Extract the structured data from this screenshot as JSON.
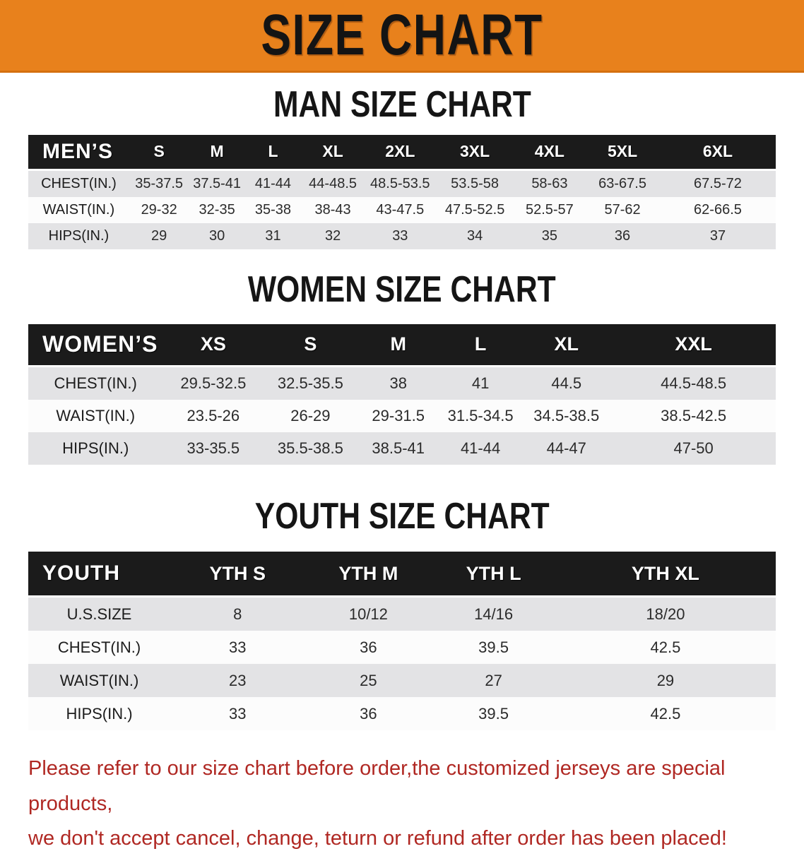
{
  "banner": {
    "title": "SIZE CHART"
  },
  "colors": {
    "banner_bg": "#E8811C",
    "banner_edge": "#D4700F",
    "header_bg": "#1B1B1B",
    "header_text": "#FFFFFF",
    "row_gray": "#E3E3E5",
    "row_white": "#FCFCFC",
    "footer_red": "#B02823"
  },
  "sections": [
    {
      "id": "men",
      "heading": "MAN SIZE CHART",
      "table": {
        "header": [
          "MEN’S",
          "S",
          "M",
          "L",
          "XL",
          "2XL",
          "3XL",
          "4XL",
          "5XL",
          "6XL"
        ],
        "rows": [
          [
            "CHEST(IN.)",
            "35-37.5",
            "37.5-41",
            "41-44",
            "44-48.5",
            "48.5-53.5",
            "53.5-58",
            "58-63",
            "63-67.5",
            "67.5-72"
          ],
          [
            "WAIST(IN.)",
            "29-32",
            "32-35",
            "35-38",
            "38-43",
            "43-47.5",
            "47.5-52.5",
            "52.5-57",
            "57-62",
            "62-66.5"
          ],
          [
            "HIPS(IN.)",
            "29",
            "30",
            "31",
            "32",
            "33",
            "34",
            "35",
            "36",
            "37"
          ]
        ]
      }
    },
    {
      "id": "women",
      "heading": "WOMEN SIZE CHART",
      "table": {
        "header": [
          "WOMEN’S",
          "XS",
          "S",
          "M",
          "L",
          "XL",
          "XXL"
        ],
        "rows": [
          [
            "CHEST(IN.)",
            "29.5-32.5",
            "32.5-35.5",
            "38",
            "41",
            "44.5",
            "44.5-48.5"
          ],
          [
            "WAIST(IN.)",
            "23.5-26",
            "26-29",
            "29-31.5",
            "31.5-34.5",
            "34.5-38.5",
            "38.5-42.5"
          ],
          [
            "HIPS(IN.)",
            "33-35.5",
            "35.5-38.5",
            "38.5-41",
            "41-44",
            "44-47",
            "47-50"
          ]
        ]
      }
    },
    {
      "id": "youth",
      "heading": "YOUTH SIZE CHART",
      "table": {
        "header": [
          "YOUTH",
          "YTH S",
          "YTH M",
          "YTH L",
          "YTH XL"
        ],
        "rows": [
          [
            "U.S.SIZE",
            "8",
            "10/12",
            "14/16",
            "18/20"
          ],
          [
            "CHEST(IN.)",
            "33",
            "36",
            "39.5",
            "42.5"
          ],
          [
            "WAIST(IN.)",
            "23",
            "25",
            "27",
            "29"
          ],
          [
            "HIPS(IN.)",
            "33",
            "36",
            "39.5",
            "42.5"
          ]
        ]
      }
    }
  ],
  "footer": {
    "line1": "Please refer to our size chart before order,the customized jerseys are special products,",
    "line2": "we don't accept cancel, change, teturn or refund after order has been placed!"
  }
}
